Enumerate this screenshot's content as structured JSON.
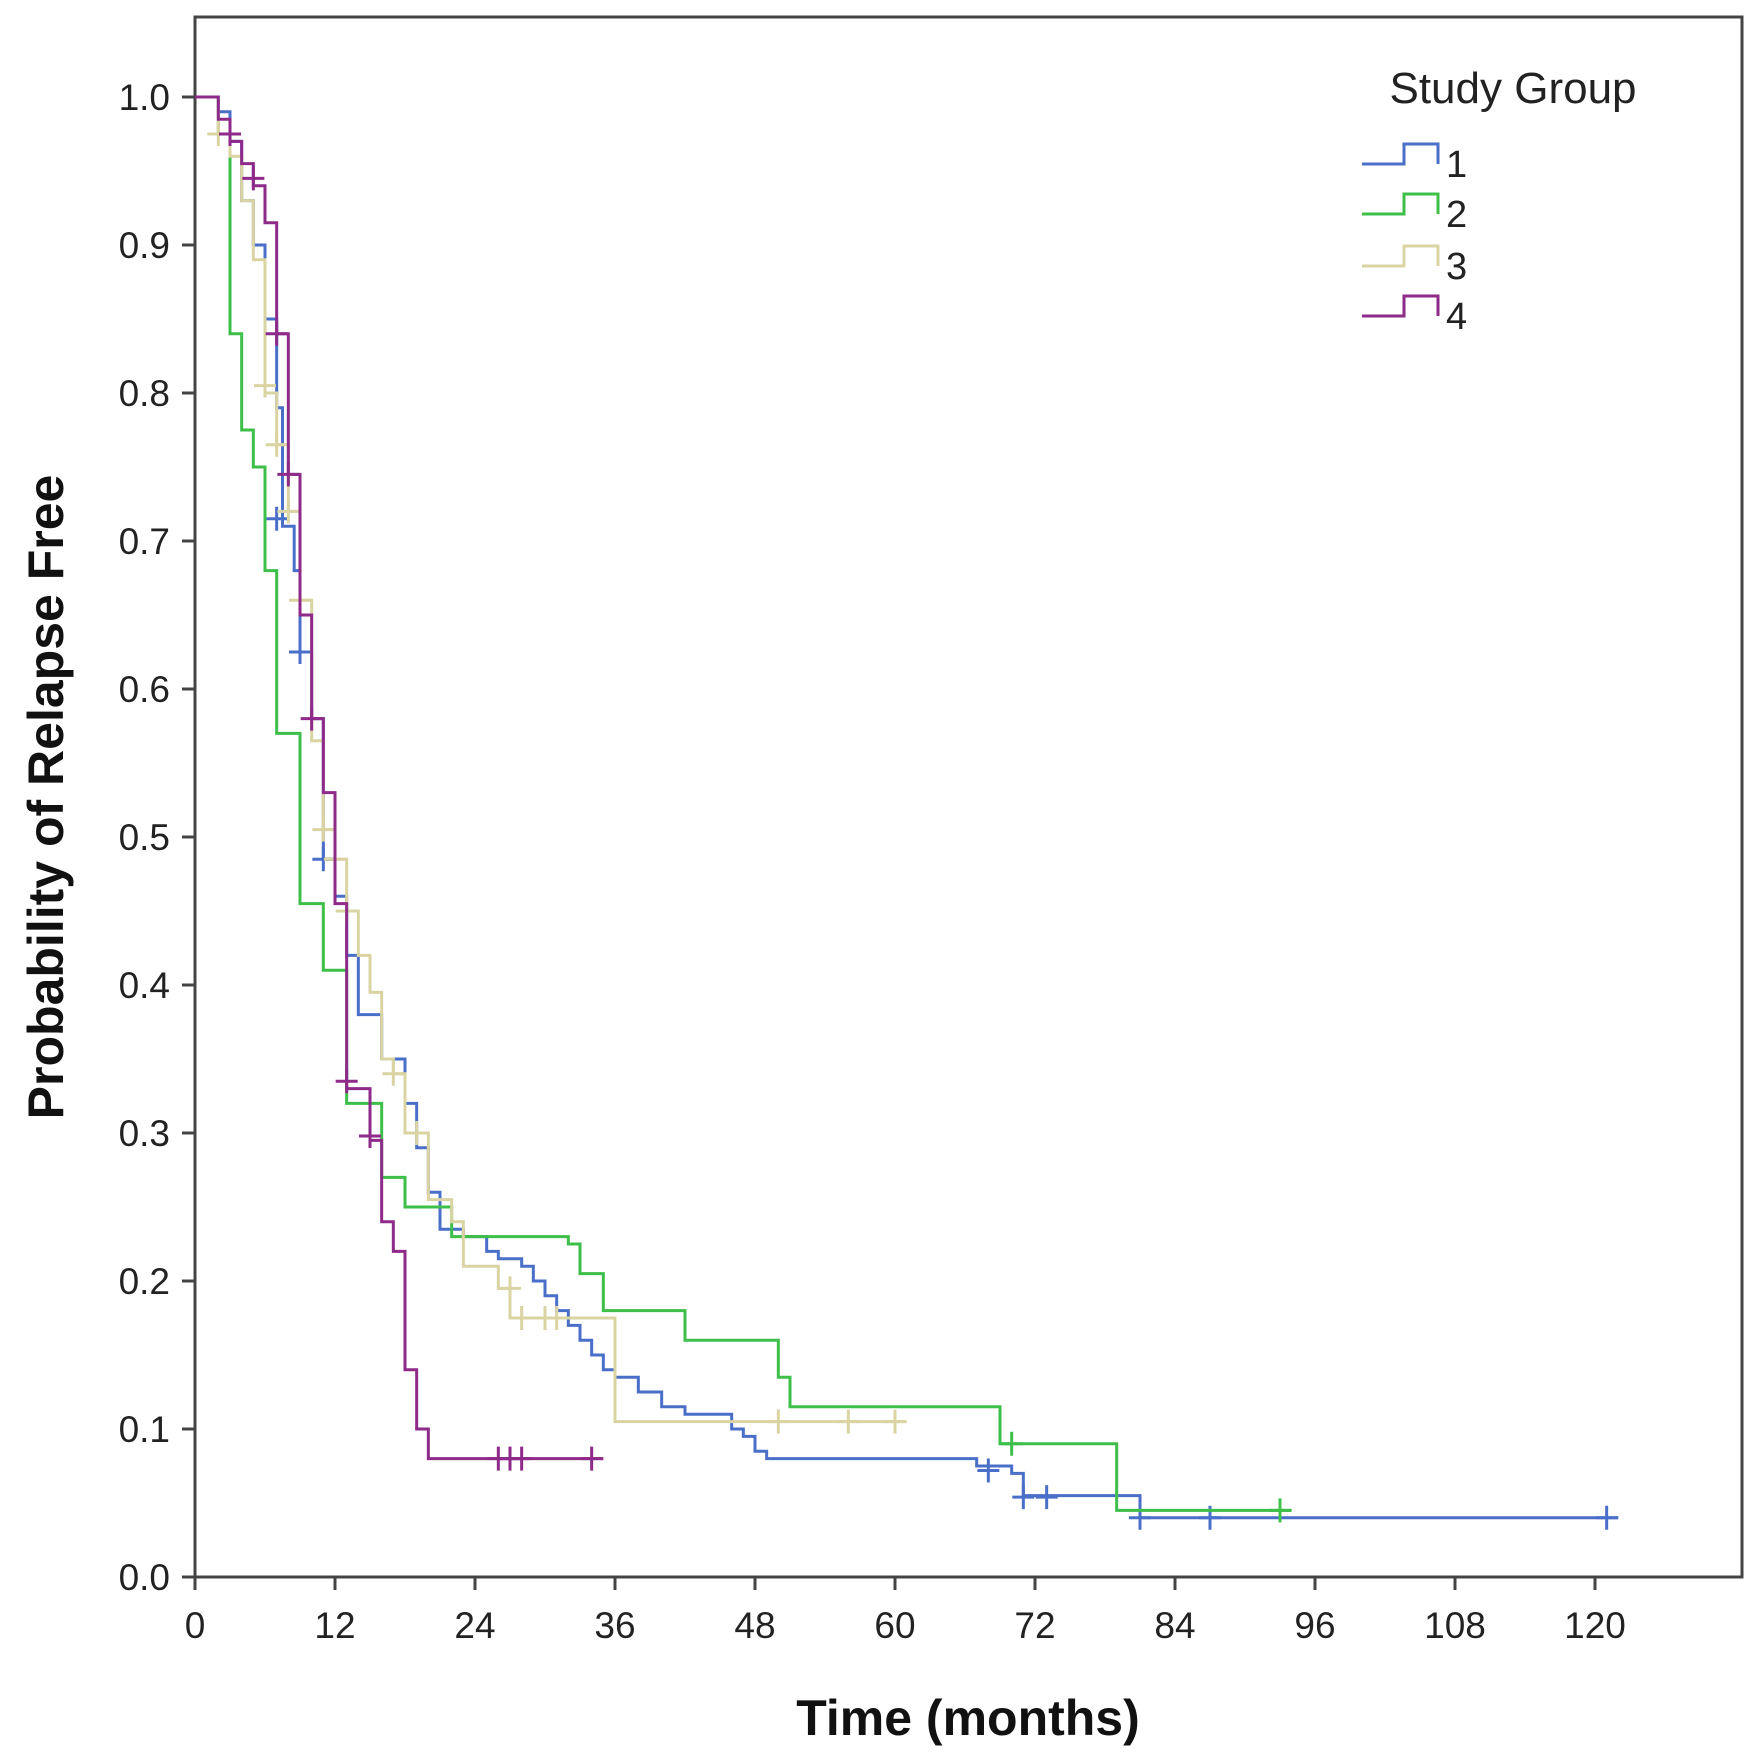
{
  "chart_data": {
    "type": "line",
    "step": true,
    "xlabel": "Time (months)",
    "ylabel": "Probability of Relapse Free",
    "xlim": [
      0,
      132
    ],
    "ylim": [
      0,
      1.05
    ],
    "xticks": [
      0,
      12,
      24,
      36,
      48,
      60,
      72,
      84,
      96,
      108,
      120
    ],
    "yticks": [
      0.0,
      0.1,
      0.2,
      0.3,
      0.4,
      0.5,
      0.6,
      0.7,
      0.8,
      0.9,
      1.0
    ],
    "xtick_labels": [
      "0",
      "12",
      "24",
      "36",
      "48",
      "60",
      "72",
      "84",
      "96",
      "108",
      "120"
    ],
    "ytick_labels": [
      "0.0",
      "0.1",
      "0.2",
      "0.3",
      "0.4",
      "0.5",
      "0.6",
      "0.7",
      "0.8",
      "0.9",
      "1.0"
    ],
    "grid": false,
    "legend": {
      "title": "Study Group",
      "position": "top-right"
    },
    "series": [
      {
        "name": "1",
        "color": "#4a6fc9",
        "points": [
          [
            0,
            1.0
          ],
          [
            2,
            0.99
          ],
          [
            3,
            0.97
          ],
          [
            4,
            0.93
          ],
          [
            5,
            0.9
          ],
          [
            6,
            0.85
          ],
          [
            7,
            0.79
          ],
          [
            7.5,
            0.71
          ],
          [
            8.5,
            0.68
          ],
          [
            9,
            0.625
          ],
          [
            10,
            0.58
          ],
          [
            11,
            0.485
          ],
          [
            12,
            0.46
          ],
          [
            13,
            0.42
          ],
          [
            14,
            0.38
          ],
          [
            16,
            0.35
          ],
          [
            18,
            0.32
          ],
          [
            19,
            0.29
          ],
          [
            20,
            0.26
          ],
          [
            21,
            0.235
          ],
          [
            23,
            0.23
          ],
          [
            25,
            0.22
          ],
          [
            26,
            0.215
          ],
          [
            28,
            0.21
          ],
          [
            29,
            0.2
          ],
          [
            30,
            0.19
          ],
          [
            31,
            0.18
          ],
          [
            32,
            0.17
          ],
          [
            33,
            0.16
          ],
          [
            34,
            0.15
          ],
          [
            35,
            0.14
          ],
          [
            36,
            0.135
          ],
          [
            38,
            0.125
          ],
          [
            40,
            0.115
          ],
          [
            42,
            0.11
          ],
          [
            46,
            0.1
          ],
          [
            47,
            0.095
          ],
          [
            48,
            0.085
          ],
          [
            49,
            0.08
          ],
          [
            67,
            0.075
          ],
          [
            70,
            0.07
          ],
          [
            71,
            0.055
          ],
          [
            81,
            0.04
          ],
          [
            122,
            0.04
          ]
        ],
        "censored": [
          [
            7,
            0.715
          ],
          [
            9,
            0.625
          ],
          [
            11,
            0.485
          ],
          [
            68,
            0.072
          ],
          [
            71,
            0.054
          ],
          [
            73,
            0.054
          ],
          [
            81,
            0.04
          ],
          [
            87,
            0.04
          ],
          [
            121,
            0.04
          ]
        ]
      },
      {
        "name": "2",
        "color": "#3dbf4a",
        "points": [
          [
            0,
            1.0
          ],
          [
            2,
            0.975
          ],
          [
            3,
            0.84
          ],
          [
            4,
            0.775
          ],
          [
            5,
            0.75
          ],
          [
            6,
            0.68
          ],
          [
            7,
            0.57
          ],
          [
            9,
            0.455
          ],
          [
            11,
            0.41
          ],
          [
            13,
            0.32
          ],
          [
            16,
            0.27
          ],
          [
            18,
            0.25
          ],
          [
            22,
            0.23
          ],
          [
            32,
            0.225
          ],
          [
            33,
            0.205
          ],
          [
            35,
            0.18
          ],
          [
            42,
            0.16
          ],
          [
            50,
            0.135
          ],
          [
            51,
            0.115
          ],
          [
            69,
            0.09
          ],
          [
            79,
            0.045
          ],
          [
            94,
            0.045
          ]
        ],
        "censored": [
          [
            70,
            0.09
          ],
          [
            93,
            0.045
          ]
        ]
      },
      {
        "name": "3",
        "color": "#d9d4a2",
        "points": [
          [
            0,
            1.0
          ],
          [
            2,
            0.975
          ],
          [
            3,
            0.96
          ],
          [
            4,
            0.93
          ],
          [
            5,
            0.89
          ],
          [
            6,
            0.8
          ],
          [
            7,
            0.765
          ],
          [
            8,
            0.72
          ],
          [
            9,
            0.66
          ],
          [
            10,
            0.565
          ],
          [
            11,
            0.505
          ],
          [
            12,
            0.485
          ],
          [
            13,
            0.45
          ],
          [
            14,
            0.42
          ],
          [
            15,
            0.395
          ],
          [
            16,
            0.35
          ],
          [
            17,
            0.34
          ],
          [
            18,
            0.3
          ],
          [
            20,
            0.255
          ],
          [
            22,
            0.24
          ],
          [
            23,
            0.21
          ],
          [
            26,
            0.195
          ],
          [
            27,
            0.175
          ],
          [
            35,
            0.175
          ],
          [
            36,
            0.105
          ],
          [
            61,
            0.105
          ]
        ],
        "censored": [
          [
            2,
            0.975
          ],
          [
            6,
            0.805
          ],
          [
            7,
            0.765
          ],
          [
            8,
            0.72
          ],
          [
            9,
            0.66
          ],
          [
            11,
            0.505
          ],
          [
            12,
            0.485
          ],
          [
            13,
            0.45
          ],
          [
            17,
            0.34
          ],
          [
            19,
            0.3
          ],
          [
            27,
            0.195
          ],
          [
            28,
            0.175
          ],
          [
            30,
            0.175
          ],
          [
            31,
            0.175
          ],
          [
            50,
            0.105
          ],
          [
            56,
            0.105
          ],
          [
            60,
            0.105
          ]
        ]
      },
      {
        "name": "4",
        "color": "#8e2a8a",
        "points": [
          [
            0,
            1.0
          ],
          [
            2,
            0.985
          ],
          [
            3,
            0.97
          ],
          [
            4,
            0.955
          ],
          [
            5,
            0.94
          ],
          [
            6,
            0.915
          ],
          [
            7,
            0.84
          ],
          [
            8,
            0.745
          ],
          [
            9,
            0.65
          ],
          [
            10,
            0.58
          ],
          [
            11,
            0.53
          ],
          [
            12,
            0.455
          ],
          [
            13,
            0.33
          ],
          [
            15,
            0.295
          ],
          [
            16,
            0.24
          ],
          [
            17,
            0.22
          ],
          [
            18,
            0.14
          ],
          [
            19,
            0.1
          ],
          [
            20,
            0.08
          ],
          [
            35,
            0.08
          ]
        ],
        "censored": [
          [
            3,
            0.975
          ],
          [
            5,
            0.945
          ],
          [
            7,
            0.84
          ],
          [
            8,
            0.745
          ],
          [
            10,
            0.58
          ],
          [
            13,
            0.335
          ],
          [
            15,
            0.298
          ],
          [
            26,
            0.08
          ],
          [
            27,
            0.08
          ],
          [
            28,
            0.08
          ],
          [
            34,
            0.08
          ]
        ]
      }
    ]
  }
}
